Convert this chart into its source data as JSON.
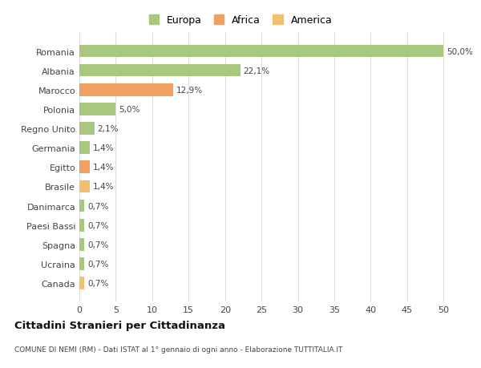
{
  "categories": [
    "Canada",
    "Ucraina",
    "Spagna",
    "Paesi Bassi",
    "Danimarca",
    "Brasile",
    "Egitto",
    "Germania",
    "Regno Unito",
    "Polonia",
    "Marocco",
    "Albania",
    "Romania"
  ],
  "values": [
    0.7,
    0.7,
    0.7,
    0.7,
    0.7,
    1.4,
    1.4,
    1.4,
    2.1,
    5.0,
    12.9,
    22.1,
    50.0
  ],
  "labels": [
    "0,7%",
    "0,7%",
    "0,7%",
    "0,7%",
    "0,7%",
    "1,4%",
    "1,4%",
    "1,4%",
    "2,1%",
    "5,0%",
    "12,9%",
    "22,1%",
    "50,0%"
  ],
  "colors": [
    "#f0c070",
    "#a8c880",
    "#a8c880",
    "#a8c880",
    "#a8c880",
    "#f0c070",
    "#f0a060",
    "#a8c880",
    "#a8c880",
    "#a8c880",
    "#f0a060",
    "#a8c880",
    "#a8c880"
  ],
  "legend_labels": [
    "Europa",
    "Africa",
    "America"
  ],
  "legend_colors": [
    "#a8c880",
    "#f0a060",
    "#f0c070"
  ],
  "title": "Cittadini Stranieri per Cittadinanza",
  "subtitle": "COMUNE DI NEMI (RM) - Dati ISTAT al 1° gennaio di ogni anno - Elaborazione TUTTITALIA.IT",
  "xlim": [
    0,
    50
  ],
  "xticks": [
    0,
    5,
    10,
    15,
    20,
    25,
    30,
    35,
    40,
    45,
    50
  ],
  "bg_color": "#ffffff",
  "grid_color": "#dddddd",
  "bar_height": 0.65
}
